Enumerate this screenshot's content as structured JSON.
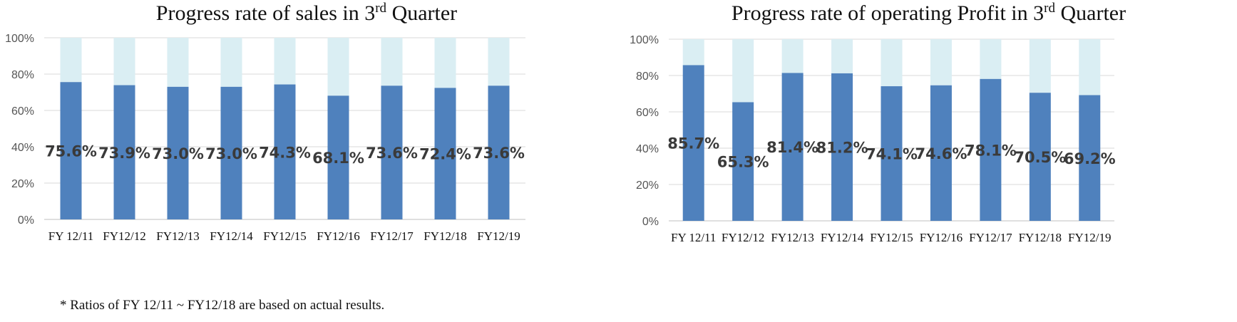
{
  "colors": {
    "actual": "#4f81bd",
    "remaining": "#daeef3",
    "grid": "#d9d9d9",
    "axis": "#bfbfbf"
  },
  "footnote": "* Ratios of FY 12/11 ~ FY12/18 are based on actual results.",
  "chart_data": [
    {
      "type": "bar",
      "stacked": true,
      "title_main": "Progress rate of sales in 3",
      "title_sup": "rd",
      "title_end": " Quarter",
      "categories": [
        "FY 12/11",
        "FY12/12",
        "FY12/13",
        "FY12/14",
        "FY12/15",
        "FY12/16",
        "FY12/17",
        "FY12/18",
        "FY12/19"
      ],
      "values": [
        75.6,
        73.9,
        73.0,
        73.0,
        74.3,
        68.1,
        73.6,
        72.4,
        73.6
      ],
      "data_labels": [
        "75.6%",
        "73.9%",
        "73.0%",
        "73.0%",
        "74.3%",
        "68.1%",
        "73.6%",
        "72.4%",
        "73.6%"
      ],
      "yticks": [
        "0%",
        "20%",
        "40%",
        "60%",
        "80%",
        "100%"
      ],
      "ylim": [
        0,
        100
      ],
      "grid": true,
      "legend": "none"
    },
    {
      "type": "bar",
      "stacked": true,
      "title_main": "Progress rate of operating Profit in 3",
      "title_sup": "rd",
      "title_end": " Quarter",
      "categories": [
        "FY 12/11",
        "FY12/12",
        "FY12/13",
        "FY12/14",
        "FY12/15",
        "FY12/16",
        "FY12/17",
        "FY12/18",
        "FY12/19"
      ],
      "values": [
        85.7,
        65.3,
        81.4,
        81.2,
        74.1,
        74.6,
        78.1,
        70.5,
        69.2
      ],
      "data_labels": [
        "85.7%",
        "65.3%",
        "81.4%",
        "81.2%",
        "74.1%",
        "74.6%",
        "78.1%",
        "70.5%",
        "69.2%"
      ],
      "yticks": [
        "0%",
        "20%",
        "40%",
        "60%",
        "80%",
        "100%"
      ],
      "ylim": [
        0,
        100
      ],
      "grid": true,
      "legend": "none"
    }
  ]
}
